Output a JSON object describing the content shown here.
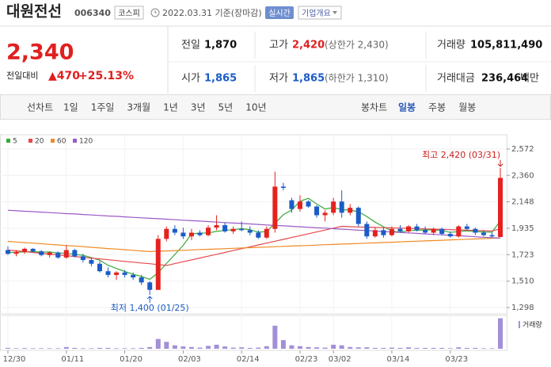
{
  "header": {
    "name": "대원전선",
    "code": "006340",
    "market": "코스피",
    "date": "2022.03.31 기준(장마감)",
    "realtime": "실시간",
    "company_info": "기업개요"
  },
  "price": {
    "current": "2,340",
    "change_label": "전일대비",
    "change": "▲470",
    "change_rate": "+25.13%"
  },
  "stats": [
    {
      "label": "전일",
      "value": "1,870"
    },
    {
      "label": "고가",
      "value": "2,420",
      "note": "(상한가 2,430)"
    },
    {
      "label": "거래량",
      "value": "105,811,490"
    },
    {
      "label": "시가",
      "value": "1,865"
    },
    {
      "label": "저가",
      "value": "1,865",
      "note": "(하한가 1,310)"
    },
    {
      "label": "거래대금",
      "value": "236,464",
      "unit": "백만"
    }
  ],
  "tabs": {
    "line_chart": "선차트",
    "periods": [
      "1일",
      "1주일",
      "3개월",
      "1년",
      "3년",
      "5년",
      "10년"
    ],
    "candle_chart": "봉차트",
    "candle_periods": [
      "일봉",
      "주봉",
      "월봉"
    ]
  },
  "chart_data": {
    "type": "candlestick",
    "categories": [
      "12/30",
      null,
      null,
      null,
      null,
      null,
      null,
      "01/11",
      null,
      null,
      null,
      null,
      null,
      null,
      "01/20",
      null,
      null,
      null,
      null,
      null,
      null,
      "02/03",
      null,
      null,
      null,
      null,
      null,
      null,
      "02/14",
      null,
      null,
      null,
      null,
      null,
      null,
      "02/23",
      null,
      null,
      null,
      "03/02",
      null,
      null,
      null,
      null,
      null,
      null,
      "03/14",
      null,
      null,
      null,
      null,
      null,
      null,
      "03/23",
      null,
      null,
      null,
      null,
      null,
      null
    ],
    "open": [
      1760,
      1730,
      1745,
      1770,
      1750,
      1720,
      1740,
      1700,
      1760,
      1710,
      1680,
      1650,
      1590,
      1560,
      1580,
      1560,
      1540,
      1500,
      1440,
      1850,
      1930,
      1900,
      1870,
      1900,
      1880,
      1940,
      1960,
      1910,
      1930,
      1920,
      1900,
      1860,
      1930,
      2270,
      2160,
      2090,
      2150,
      2110,
      2040,
      2060,
      2150,
      2060,
      2100,
      1970,
      1870,
      1920,
      1880,
      1930,
      1910,
      1950,
      1920,
      1900,
      1930,
      1890,
      1870,
      1950,
      1930,
      1900,
      1880,
      1865
    ],
    "high": [
      1790,
      1760,
      1780,
      1775,
      1760,
      1750,
      1750,
      1800,
      1770,
      1730,
      1700,
      1670,
      1620,
      1590,
      1600,
      1580,
      1560,
      1510,
      1880,
      1950,
      1960,
      1940,
      1930,
      1920,
      1960,
      2040,
      1980,
      1950,
      1990,
      1950,
      1920,
      1950,
      2390,
      2300,
      2180,
      2200,
      2160,
      2120,
      2080,
      2180,
      2240,
      2130,
      2110,
      1990,
      1940,
      1940,
      1950,
      1960,
      1960,
      1970,
      1950,
      1940,
      1940,
      1910,
      1960,
      1970,
      1940,
      1920,
      1900,
      2420
    ],
    "low": [
      1720,
      1710,
      1730,
      1740,
      1710,
      1700,
      1690,
      1690,
      1700,
      1660,
      1630,
      1580,
      1540,
      1520,
      1540,
      1520,
      1480,
      1400,
      1440,
      1830,
      1880,
      1850,
      1840,
      1870,
      1870,
      1920,
      1900,
      1890,
      1910,
      1880,
      1850,
      1850,
      1900,
      2240,
      2060,
      2070,
      2100,
      2020,
      1990,
      2040,
      2020,
      2040,
      1950,
      1850,
      1860,
      1860,
      1870,
      1900,
      1900,
      1910,
      1890,
      1880,
      1880,
      1860,
      1860,
      1920,
      1880,
      1870,
      1860,
      1865
    ],
    "close": [
      1730,
      1745,
      1770,
      1750,
      1720,
      1740,
      1700,
      1760,
      1710,
      1680,
      1650,
      1590,
      1560,
      1580,
      1560,
      1540,
      1500,
      1440,
      1850,
      1930,
      1900,
      1870,
      1900,
      1880,
      1940,
      1960,
      1910,
      1930,
      1920,
      1900,
      1860,
      1930,
      2270,
      2260,
      2090,
      2150,
      2110,
      2040,
      2060,
      2150,
      2060,
      2100,
      1970,
      1870,
      1920,
      1880,
      1930,
      1910,
      1950,
      1920,
      1900,
      1930,
      1890,
      1870,
      1950,
      1930,
      1900,
      1880,
      1870,
      2340
    ],
    "up_color": "#e5221f",
    "down_color": "#1b5cc7",
    "ylim": [
      1247,
      2623
    ],
    "yticks": [
      {
        "value": 1298,
        "label": "1,298"
      },
      {
        "value": 1510,
        "label": "1,510"
      },
      {
        "value": 1723,
        "label": "1,723"
      },
      {
        "value": 1935,
        "label": "1,935"
      },
      {
        "value": 2148,
        "label": "2,148"
      },
      {
        "value": 2360,
        "label": "2,360"
      },
      {
        "value": 2572,
        "label": "2,572"
      }
    ],
    "grid": true,
    "moving_averages": [
      {
        "name": "5",
        "color": "#3aa83a",
        "values": [
          1740,
          1742,
          1745,
          1748,
          1743,
          1745,
          1736,
          1734,
          1726,
          1718,
          1700,
          1678,
          1638,
          1612,
          1588,
          1566,
          1548,
          1524,
          1578,
          1652,
          1724,
          1798,
          1890,
          1896,
          1898,
          1910,
          1918,
          1924,
          1932,
          1924,
          1904,
          1908,
          1976,
          2044,
          2082,
          2152,
          2176,
          2130,
          2090,
          2102,
          2084,
          2082,
          2068,
          2030,
          1984,
          1948,
          1914,
          1902,
          1918,
          1918,
          1922,
          1922,
          1918,
          1902,
          1908,
          1914,
          1908,
          1906,
          1904,
          1994
        ]
      },
      {
        "name": "20",
        "color": "#e5484d",
        "values": [
          1760,
          1754,
          1747,
          1741,
          1734,
          1728,
          1721,
          1715,
          1708,
          1702,
          1695,
          1689,
          1682,
          1676,
          1669,
          1663,
          1656,
          1650,
          1643,
          1636,
          1651,
          1666,
          1681,
          1696,
          1711,
          1726,
          1741,
          1756,
          1771,
          1786,
          1801,
          1816,
          1831,
          1846,
          1861,
          1876,
          1891,
          1906,
          1921,
          1936,
          1951,
          1948,
          1946,
          1944,
          1942,
          1940,
          1938,
          1936,
          1934,
          1932,
          1930,
          1928,
          1926,
          1924,
          1922,
          1920,
          1918,
          1916,
          1914,
          1930
        ]
      },
      {
        "name": "60",
        "color": "#f08a24",
        "values": [
          1830,
          1825,
          1820,
          1816,
          1811,
          1806,
          1801,
          1796,
          1792,
          1787,
          1782,
          1777,
          1772,
          1768,
          1763,
          1758,
          1753,
          1748,
          1751,
          1753,
          1756,
          1758,
          1761,
          1764,
          1766,
          1769,
          1771,
          1774,
          1777,
          1779,
          1782,
          1784,
          1787,
          1790,
          1792,
          1795,
          1797,
          1800,
          1803,
          1805,
          1808,
          1810,
          1813,
          1816,
          1818,
          1821,
          1823,
          1826,
          1829,
          1831,
          1834,
          1836,
          1839,
          1842,
          1844,
          1847,
          1849,
          1852,
          1855,
          1857
        ]
      },
      {
        "name": "120",
        "color": "#9b59c6",
        "values": [
          2080,
          2076,
          2072,
          2069,
          2065,
          2061,
          2057,
          2053,
          2050,
          2046,
          2042,
          2038,
          2034,
          2031,
          2027,
          2023,
          2019,
          2015,
          2012,
          2008,
          2004,
          2000,
          1996,
          1993,
          1989,
          1985,
          1981,
          1977,
          1974,
          1970,
          1966,
          1962,
          1958,
          1955,
          1951,
          1947,
          1943,
          1939,
          1936,
          1932,
          1928,
          1924,
          1920,
          1917,
          1913,
          1909,
          1905,
          1901,
          1898,
          1894,
          1890,
          1886,
          1882,
          1879,
          1875,
          1871,
          1867,
          1863,
          1860,
          1856
        ]
      }
    ],
    "volume": {
      "name": "거래량",
      "color": "#a38fd8",
      "ylim": [
        0,
        110000000
      ],
      "values": [
        3000000,
        2000000,
        2500000,
        2000000,
        2000000,
        2000000,
        2000000,
        6000000,
        3000000,
        2000000,
        2000000,
        3000000,
        3000000,
        2000000,
        2000000,
        2000000,
        3000000,
        6000000,
        34000000,
        24000000,
        12000000,
        8000000,
        6000000,
        4000000,
        10000000,
        14000000,
        8000000,
        4000000,
        5000000,
        3000000,
        4000000,
        9000000,
        80000000,
        30000000,
        12000000,
        9000000,
        6000000,
        5000000,
        4000000,
        14000000,
        12000000,
        6000000,
        5000000,
        5000000,
        3000000,
        3000000,
        4000000,
        3000000,
        5000000,
        3000000,
        3000000,
        3000000,
        3000000,
        2000000,
        5000000,
        3000000,
        3000000,
        2000000,
        2000000,
        105811490
      ]
    },
    "annotations": {
      "high": "최고 2,420 (03/31)",
      "low": "최저 1,400 (01/25)"
    }
  }
}
